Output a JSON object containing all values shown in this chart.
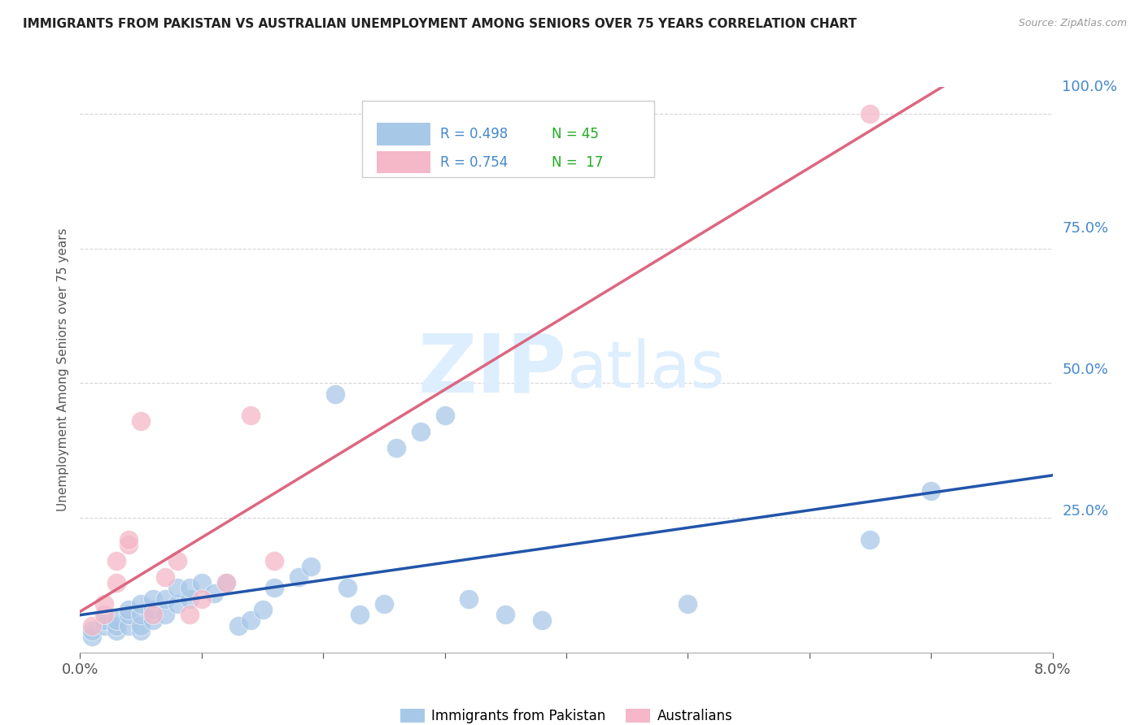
{
  "title": "IMMIGRANTS FROM PAKISTAN VS AUSTRALIAN UNEMPLOYMENT AMONG SENIORS OVER 75 YEARS CORRELATION CHART",
  "source": "Source: ZipAtlas.com",
  "ylabel": "Unemployment Among Seniors over 75 years",
  "legend_blue_R": "R = 0.498",
  "legend_blue_N": "N = 45",
  "legend_pink_R": "R = 0.754",
  "legend_pink_N": "N = 17",
  "legend_label_blue": "Immigrants from Pakistan",
  "legend_label_pink": "Australians",
  "blue_color": "#a8c8e8",
  "pink_color": "#f4b8c8",
  "blue_line_color": "#2255aa",
  "pink_line_color": "#dd6680",
  "r_n_color": "#4488cc",
  "watermark_zip": "ZIP",
  "watermark_atlas": "atlas",
  "watermark_color": "#ddeeff",
  "background_color": "#ffffff",
  "blue_scatter_x": [
    0.001,
    0.001,
    0.002,
    0.002,
    0.003,
    0.003,
    0.003,
    0.004,
    0.004,
    0.004,
    0.005,
    0.005,
    0.005,
    0.005,
    0.006,
    0.006,
    0.006,
    0.007,
    0.007,
    0.008,
    0.008,
    0.009,
    0.009,
    0.01,
    0.011,
    0.012,
    0.013,
    0.014,
    0.015,
    0.016,
    0.018,
    0.019,
    0.021,
    0.022,
    0.023,
    0.025,
    0.026,
    0.028,
    0.03,
    0.032,
    0.035,
    0.038,
    0.05,
    0.065,
    0.07
  ],
  "blue_scatter_y": [
    0.03,
    0.04,
    0.05,
    0.06,
    0.04,
    0.05,
    0.06,
    0.05,
    0.07,
    0.08,
    0.04,
    0.05,
    0.07,
    0.09,
    0.06,
    0.08,
    0.1,
    0.07,
    0.1,
    0.09,
    0.12,
    0.1,
    0.12,
    0.13,
    0.11,
    0.13,
    0.05,
    0.06,
    0.08,
    0.12,
    0.14,
    0.16,
    0.48,
    0.12,
    0.07,
    0.09,
    0.38,
    0.41,
    0.44,
    0.1,
    0.07,
    0.06,
    0.09,
    0.21,
    0.3
  ],
  "pink_scatter_x": [
    0.001,
    0.002,
    0.002,
    0.003,
    0.003,
    0.004,
    0.004,
    0.005,
    0.006,
    0.007,
    0.008,
    0.009,
    0.01,
    0.012,
    0.014,
    0.016,
    0.065
  ],
  "pink_scatter_y": [
    0.05,
    0.07,
    0.09,
    0.13,
    0.17,
    0.2,
    0.21,
    0.43,
    0.07,
    0.14,
    0.17,
    0.07,
    0.1,
    0.13,
    0.44,
    0.17,
    1.0
  ],
  "xlim": [
    0.0,
    0.08
  ],
  "ylim": [
    0.0,
    1.05
  ],
  "x_ticks": [
    0.0,
    0.01,
    0.02,
    0.03,
    0.04,
    0.05,
    0.06,
    0.07,
    0.08
  ],
  "y_ticks": [
    0.0,
    0.25,
    0.5,
    0.75,
    1.0
  ]
}
